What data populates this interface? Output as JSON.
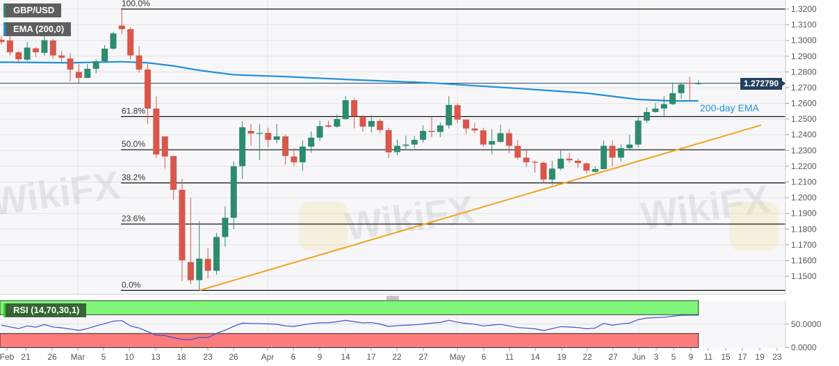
{
  "header": {
    "symbol": "GBP/USD",
    "indicator": "EMA (200,0)",
    "rsi_label": "RSI (14,70,30,1)",
    "last_price": "1.272790"
  },
  "watermark": "WikiFX",
  "colors": {
    "up": "#2e8b6e",
    "down": "#d9574a",
    "ema": "#1e90d8",
    "trendline": "#f5a01a",
    "rsi_line": "#3a4fd0",
    "overbought_band": "#80f57a",
    "oversold_band": "#fa7c7c",
    "price_line": "#23405f"
  },
  "chart_data": [
    {
      "type": "candlestick",
      "title": "GBP/USD",
      "ylim": [
        1.14,
        1.325
      ],
      "y_ticks": [
        "1.3200",
        "1.3100",
        "1.3000",
        "1.2900",
        "1.2800",
        "1.2700",
        "1.2600",
        "1.2500",
        "1.2400",
        "1.2300",
        "1.2200",
        "1.2100",
        "1.2000",
        "1.1900",
        "1.1800",
        "1.1700",
        "1.1600",
        "1.1500"
      ],
      "x_ticks": [
        "Feb",
        "21",
        "26",
        "Mar",
        "5",
        "10",
        "13",
        "18",
        "23",
        "26",
        "Apr",
        "6",
        "9",
        "14",
        "17",
        "22",
        "27",
        "May",
        "6",
        "11",
        "14",
        "19",
        "22",
        "27",
        "Jun",
        "3",
        "5",
        "9",
        "11",
        "15",
        "17",
        "19",
        "23"
      ],
      "grid": true,
      "ohlc": [
        [
          1.3005,
          1.303,
          1.2975,
          1.299
        ],
        [
          1.3,
          1.3045,
          1.2905,
          1.2925
        ],
        [
          1.2925,
          1.2935,
          1.286,
          1.288
        ],
        [
          1.2878,
          1.299,
          1.287,
          1.2955
        ],
        [
          1.295,
          1.296,
          1.2895,
          1.2925
        ],
        [
          1.2922,
          1.303,
          1.2905,
          1.3002
        ],
        [
          1.3,
          1.301,
          1.2885,
          1.2905
        ],
        [
          1.2905,
          1.2935,
          1.286,
          1.289
        ],
        [
          1.2885,
          1.292,
          1.274,
          1.2815
        ],
        [
          1.28,
          1.285,
          1.273,
          1.2762
        ],
        [
          1.2762,
          1.285,
          1.276,
          1.282
        ],
        [
          1.282,
          1.288,
          1.279,
          1.2868
        ],
        [
          1.2868,
          1.297,
          1.286,
          1.2948
        ],
        [
          1.2948,
          1.3055,
          1.294,
          1.3045
        ],
        [
          1.3095,
          1.32,
          1.304,
          1.3072
        ],
        [
          1.3072,
          1.3085,
          1.288,
          1.2905
        ],
        [
          1.2905,
          1.2965,
          1.2795,
          1.2815
        ],
        [
          1.2815,
          1.285,
          1.247,
          1.2567
        ],
        [
          1.2567,
          1.2645,
          1.2255,
          1.2275
        ],
        [
          1.239,
          1.239,
          1.2185,
          1.2262
        ],
        [
          1.2265,
          1.2265,
          1.1985,
          1.205
        ],
        [
          1.205,
          1.212,
          1.147,
          1.1602
        ],
        [
          1.159,
          1.2,
          1.145,
          1.1475
        ],
        [
          1.1475,
          1.185,
          1.141,
          1.1612
        ],
        [
          1.161,
          1.168,
          1.1485,
          1.1535
        ],
        [
          1.1535,
          1.1775,
          1.151,
          1.175
        ],
        [
          1.175,
          1.1945,
          1.169,
          1.1872
        ],
        [
          1.1872,
          1.223,
          1.18,
          1.22
        ],
        [
          1.22,
          1.2485,
          1.212,
          1.2448
        ],
        [
          1.2425,
          1.247,
          1.233,
          1.2408
        ],
        [
          1.241,
          1.247,
          1.224,
          1.2412
        ],
        [
          1.2412,
          1.2445,
          1.232,
          1.2368
        ],
        [
          1.2368,
          1.247,
          1.2345,
          1.239
        ],
        [
          1.239,
          1.24,
          1.221,
          1.2265
        ],
        [
          1.2262,
          1.2315,
          1.22,
          1.2225
        ],
        [
          1.2225,
          1.2365,
          1.217,
          1.2325
        ],
        [
          1.2325,
          1.242,
          1.2285,
          1.2382
        ],
        [
          1.2382,
          1.249,
          1.236,
          1.2455
        ],
        [
          1.246,
          1.249,
          1.2445,
          1.2452
        ],
        [
          1.2452,
          1.253,
          1.2445,
          1.25
        ],
        [
          1.25,
          1.2647,
          1.2495,
          1.262
        ],
        [
          1.262,
          1.263,
          1.244,
          1.2518
        ],
        [
          1.2512,
          1.2525,
          1.242,
          1.2452
        ],
        [
          1.2452,
          1.2525,
          1.2415,
          1.2488
        ],
        [
          1.2488,
          1.25,
          1.241,
          1.243
        ],
        [
          1.243,
          1.2445,
          1.225,
          1.2288
        ],
        [
          1.229,
          1.237,
          1.227,
          1.233
        ],
        [
          1.233,
          1.2395,
          1.2305,
          1.2338
        ],
        [
          1.2338,
          1.2392,
          1.2315,
          1.2368
        ],
        [
          1.2368,
          1.246,
          1.235,
          1.2425
        ],
        [
          1.2425,
          1.2515,
          1.2385,
          1.2418
        ],
        [
          1.2418,
          1.248,
          1.2385,
          1.246
        ],
        [
          1.246,
          1.2645,
          1.244,
          1.259
        ],
        [
          1.2588,
          1.26,
          1.2475,
          1.2497
        ],
        [
          1.2497,
          1.2497,
          1.2405,
          1.244
        ],
        [
          1.244,
          1.2475,
          1.241,
          1.2428
        ],
        [
          1.2428,
          1.2445,
          1.2325,
          1.2338
        ],
        [
          1.2338,
          1.2435,
          1.2275,
          1.236
        ],
        [
          1.2355,
          1.2465,
          1.235,
          1.241
        ],
        [
          1.241,
          1.2435,
          1.228,
          1.233
        ],
        [
          1.233,
          1.2365,
          1.2245,
          1.2255
        ],
        [
          1.2255,
          1.231,
          1.2195,
          1.2225
        ],
        [
          1.2228,
          1.2235,
          1.216,
          1.2223
        ],
        [
          1.2222,
          1.223,
          1.209,
          1.2115
        ],
        [
          1.2115,
          1.2235,
          1.208,
          1.2185
        ],
        [
          1.2185,
          1.23,
          1.2175,
          1.2248
        ],
        [
          1.2248,
          1.2285,
          1.222,
          1.2238
        ],
        [
          1.2235,
          1.225,
          1.219,
          1.222
        ],
        [
          1.2218,
          1.2225,
          1.2155,
          1.2172
        ],
        [
          1.2165,
          1.22,
          1.216,
          1.2182
        ],
        [
          1.2182,
          1.2365,
          1.218,
          1.233
        ],
        [
          1.233,
          1.2365,
          1.22,
          1.2255
        ],
        [
          1.2255,
          1.234,
          1.223,
          1.2315
        ],
        [
          1.2315,
          1.24,
          1.2305,
          1.2338
        ],
        [
          1.2338,
          1.252,
          1.232,
          1.249
        ],
        [
          1.249,
          1.2575,
          1.2475,
          1.2545
        ],
        [
          1.2545,
          1.26,
          1.254,
          1.2567
        ],
        [
          1.2567,
          1.2645,
          1.251,
          1.2595
        ],
        [
          1.2595,
          1.273,
          1.259,
          1.2665
        ],
        [
          1.2665,
          1.273,
          1.263,
          1.272
        ],
        [
          1.273,
          1.277,
          1.262,
          1.2725
        ],
        [
          1.2728,
          1.2745,
          1.272,
          1.2728
        ]
      ],
      "ema_200": [
        [
          0,
          1.2862
        ],
        [
          8,
          1.2858
        ],
        [
          14,
          1.2865
        ],
        [
          17,
          1.2858
        ],
        [
          20,
          1.2838
        ],
        [
          23,
          1.281
        ],
        [
          27,
          1.2782
        ],
        [
          33,
          1.277
        ],
        [
          40,
          1.2752
        ],
        [
          50,
          1.273
        ],
        [
          60,
          1.2695
        ],
        [
          68,
          1.2665
        ],
        [
          74,
          1.2625
        ],
        [
          78,
          1.2615
        ],
        [
          81,
          1.2616
        ]
      ],
      "ema_annotation": "200-day EMA",
      "trendline": {
        "from": [
          23,
          1.141
        ],
        "to": [
          88.3,
          1.2462
        ]
      },
      "fibonacci": [
        {
          "label": "100.0%",
          "value": 1.32
        },
        {
          "label": "61.8%",
          "value": 1.2516
        },
        {
          "label": "50.0%",
          "value": 1.2305
        },
        {
          "label": "38.2%",
          "value": 1.2094
        },
        {
          "label": "23.6%",
          "value": 1.1832
        },
        {
          "label": "0.0%",
          "value": 1.141
        }
      ],
      "last_price": 1.27279
    },
    {
      "type": "line",
      "title": "RSI (14,70,30,1)",
      "ylim": [
        0,
        100
      ],
      "y_ticks": [
        "50.0000",
        "0.0000"
      ],
      "overbought": 70,
      "oversold": 30,
      "values": [
        47.5,
        44,
        40.5,
        46,
        43.5,
        49,
        43.8,
        42,
        39.5,
        36.5,
        40.5,
        46,
        51,
        56.2,
        57.5,
        46,
        41.5,
        34,
        26.3,
        25.4,
        21,
        17.4,
        16.5,
        21.5,
        21.5,
        30.3,
        37,
        45.2,
        52,
        51.4,
        51,
        50.4,
        49.6,
        46,
        45,
        48.2,
        51,
        52.8,
        52.8,
        55,
        58,
        55,
        52.5,
        53.2,
        50,
        45,
        46.6,
        47.6,
        48.4,
        50,
        52,
        53.5,
        58,
        54,
        51.5,
        49.5,
        46,
        47.8,
        49.5,
        46,
        42.7,
        41.4,
        40,
        36.3,
        40.3,
        44.5,
        43.7,
        42.7,
        40,
        41.4,
        51.5,
        47.5,
        50.5,
        52,
        59.5,
        62.8,
        63.8,
        64.5,
        66.7,
        68.8,
        69,
        69
      ]
    }
  ]
}
